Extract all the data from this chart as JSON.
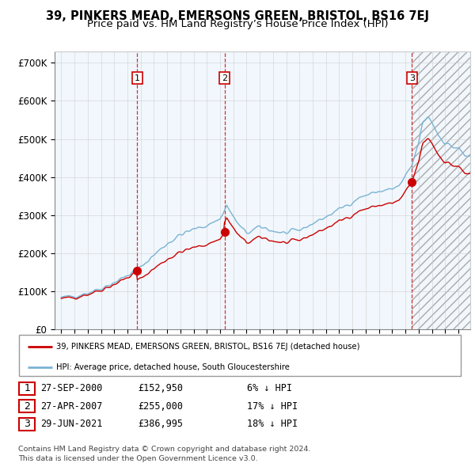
{
  "title": "39, PINKERS MEAD, EMERSONS GREEN, BRISTOL, BS16 7EJ",
  "subtitle": "Price paid vs. HM Land Registry’s House Price Index (HPI)",
  "ylabel_ticks": [
    "£0",
    "£100K",
    "£200K",
    "£300K",
    "£400K",
    "£500K",
    "£600K",
    "£700K"
  ],
  "ytick_values": [
    0,
    100000,
    200000,
    300000,
    400000,
    500000,
    600000,
    700000
  ],
  "ylim": [
    0,
    730000
  ],
  "legend_line1": "39, PINKERS MEAD, EMERSONS GREEN, BRISTOL, BS16 7EJ (detached house)",
  "legend_line2": "HPI: Average price, detached house, South Gloucestershire",
  "line_color_red": "#cc0000",
  "line_color_blue": "#7ab3d4",
  "fill_color_blue": "#ddeeff",
  "marker_color": "#cc0000",
  "sale_years": [
    2000.75,
    2007.33,
    2021.5
  ],
  "sale_prices": [
    152950,
    255000,
    386995
  ],
  "transactions": [
    {
      "label": "1",
      "date": "27-SEP-2000",
      "price": "£152,950",
      "pct": "6%"
    },
    {
      "label": "2",
      "date": "27-APR-2007",
      "price": "£255,000",
      "pct": "17%"
    },
    {
      "label": "3",
      "date": "29-JUN-2021",
      "price": "£386,995",
      "pct": "18%"
    }
  ],
  "footer1": "Contains HM Land Registry data © Crown copyright and database right 2024.",
  "footer2": "This data is licensed under the Open Government Licence v3.0.",
  "grid_color": "#cccccc",
  "title_fontsize": 10.5,
  "subtitle_fontsize": 9.5
}
